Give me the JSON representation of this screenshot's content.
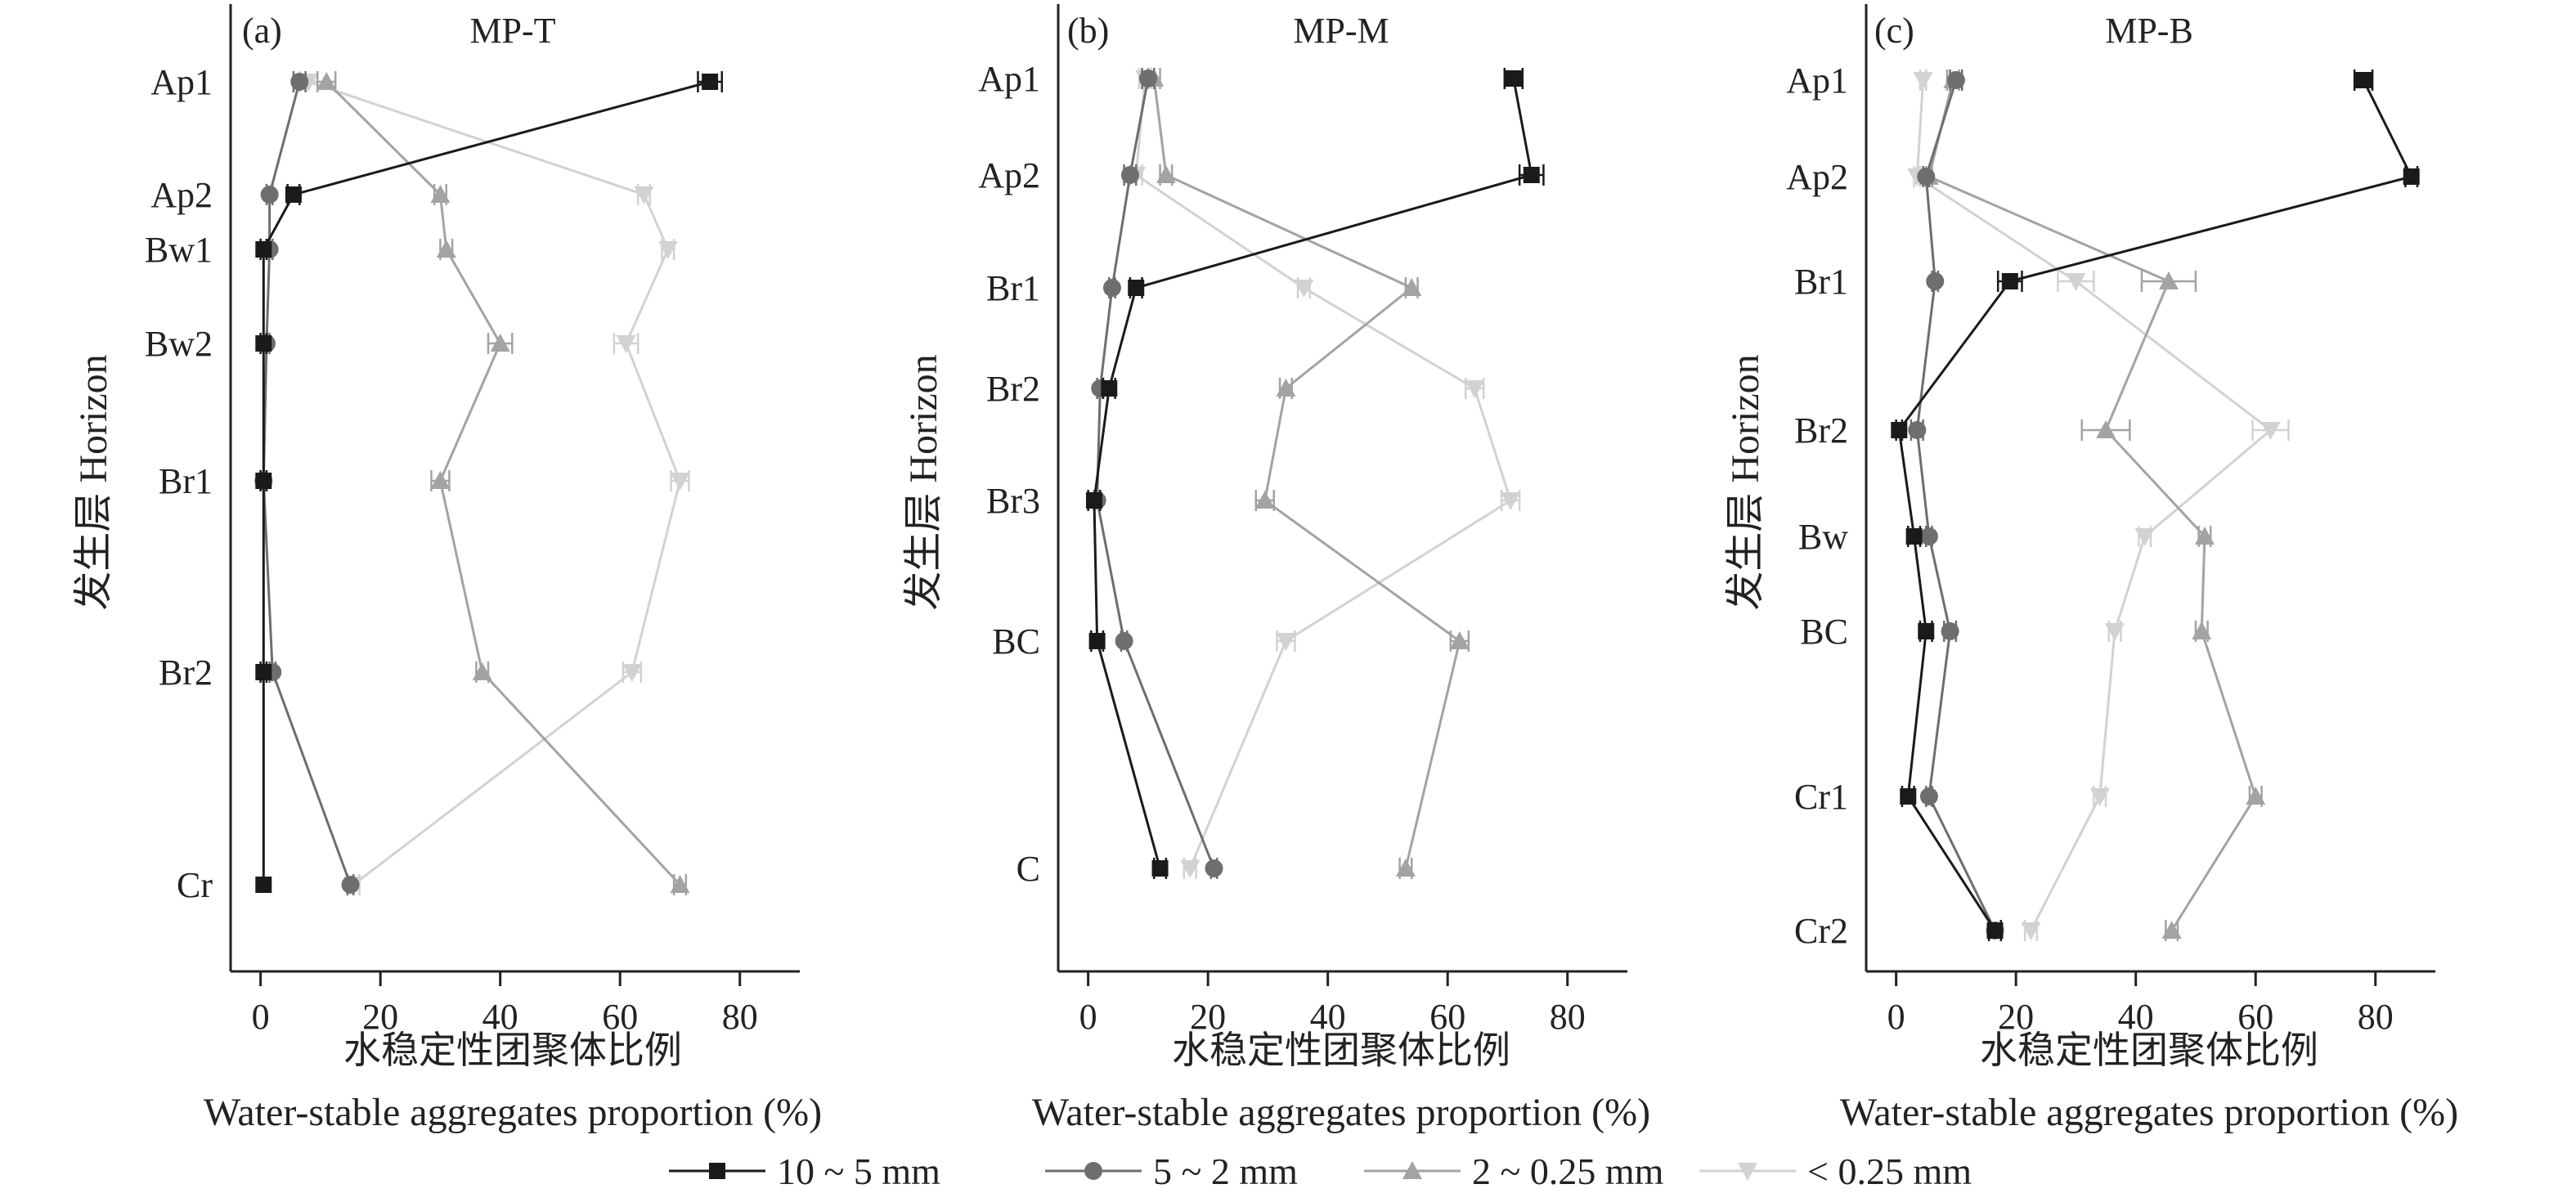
{
  "legend": [
    {
      "name": "10 ~ 5 mm",
      "color": "#1a1a1a",
      "marker": "square"
    },
    {
      "name": "5 ~ 2 mm",
      "color": "#6e6e6e",
      "marker": "circle"
    },
    {
      "name": "2 ~ 0.25 mm",
      "color": "#a3a3a3",
      "marker": "triangle-up"
    },
    {
      "name": "< 0.25 mm",
      "color": "#d2d2d2",
      "marker": "triangle-down"
    }
  ],
  "chart_data": [
    {
      "type": "line",
      "panel": "(a)",
      "title": "MP-T",
      "ylabel": "发生层 Horizon",
      "xlabel_cn": "水稳定性团聚体比例",
      "xlabel_en": "Water-stable aggregates proportion (%)",
      "xlim": [
        -5,
        90
      ],
      "xticks": [
        0,
        20,
        40,
        60,
        80
      ],
      "horizons": [
        "Ap1",
        "Ap2",
        "Bw1",
        "Bw2",
        "Br1",
        "Br2",
        "Cr"
      ],
      "series": [
        {
          "name": "10 ~ 5 mm",
          "values": [
            75,
            5.5,
            0.5,
            0.5,
            0.5,
            0.5,
            0.5
          ],
          "errors": [
            2,
            1,
            0.5,
            0.5,
            0.5,
            0.5,
            0
          ]
        },
        {
          "name": "5 ~ 2 mm",
          "values": [
            6.5,
            1.5,
            1.5,
            1,
            0.5,
            2,
            15
          ],
          "errors": [
            1,
            0.5,
            0.5,
            0.5,
            0.5,
            0.5,
            0.5
          ]
        },
        {
          "name": "2 ~ 0.25 mm",
          "values": [
            11,
            30,
            31,
            40,
            30,
            37,
            70
          ],
          "errors": [
            1.5,
            1,
            1,
            2,
            1.5,
            1,
            1
          ]
        },
        {
          "name": "< 0.25 mm",
          "values": [
            8,
            64,
            68,
            61,
            70,
            62,
            15.5
          ],
          "errors": [
            1.5,
            1,
            1,
            2,
            1.5,
            1.5,
            1
          ]
        }
      ]
    },
    {
      "type": "line",
      "panel": "(b)",
      "title": "MP-M",
      "ylabel": "发生层 Horizon",
      "xlabel_cn": "水稳定性团聚体比例",
      "xlabel_en": "Water-stable aggregates proportion (%)",
      "xlim": [
        -5,
        90
      ],
      "xticks": [
        0,
        20,
        40,
        60,
        80
      ],
      "horizons": [
        "Ap1",
        "Ap2",
        "Br1",
        "Br2",
        "Br3",
        "BC",
        "C"
      ],
      "series": [
        {
          "name": "10 ~ 5 mm",
          "values": [
            71,
            74,
            8,
            3.5,
            1,
            1.5,
            12
          ],
          "errors": [
            1.5,
            2,
            1,
            1,
            1,
            1,
            1
          ]
        },
        {
          "name": "5 ~ 2 mm",
          "values": [
            10,
            7,
            4,
            2,
            1.5,
            6,
            21
          ],
          "errors": [
            1,
            1,
            0.5,
            0.5,
            0.5,
            0.5,
            0.5
          ]
        },
        {
          "name": "2 ~ 0.25 mm",
          "values": [
            11,
            13,
            54,
            33,
            29.5,
            62,
            53
          ],
          "errors": [
            1,
            1,
            1,
            1,
            1.5,
            1.5,
            1
          ]
        },
        {
          "name": "< 0.25 mm",
          "values": [
            9.5,
            8,
            36,
            64.5,
            70.5,
            33,
            17
          ],
          "errors": [
            1,
            1,
            1,
            1.5,
            1.5,
            1.5,
            1
          ]
        }
      ]
    },
    {
      "type": "line",
      "panel": "(c)",
      "title": "MP-B",
      "ylabel": "发生层 Horizon",
      "xlabel_cn": "水稳定性团聚体比例",
      "xlabel_en": "Water-stable aggregates proportion (%)",
      "xlim": [
        -5,
        90
      ],
      "xticks": [
        0,
        20,
        40,
        60,
        80
      ],
      "horizons": [
        "Ap1",
        "Ap2",
        "Br1",
        "Br2",
        "Bw",
        "BC",
        "Cr1",
        "Cr2"
      ],
      "series": [
        {
          "name": "10 ~ 5 mm",
          "values": [
            78,
            86,
            19,
            0.5,
            3,
            5,
            2,
            16.5
          ],
          "errors": [
            1.5,
            1,
            2,
            0.5,
            1,
            1,
            1,
            1
          ]
        },
        {
          "name": "5 ~ 2 mm",
          "values": [
            10,
            5,
            6.5,
            3.5,
            5.5,
            9,
            5.5,
            16.5
          ],
          "errors": [
            1,
            0.5,
            0.5,
            1,
            0.5,
            1,
            0.5,
            1
          ]
        },
        {
          "name": "2 ~ 0.25 mm",
          "values": [
            9.5,
            5.5,
            45.5,
            35,
            51.5,
            51,
            60,
            46
          ],
          "errors": [
            1,
            0.5,
            4.5,
            4,
            1,
            1,
            1,
            1
          ]
        },
        {
          "name": "< 0.25 mm",
          "values": [
            4.5,
            3.5,
            30,
            62.5,
            41.5,
            36.5,
            34,
            22.5
          ],
          "errors": [
            0.5,
            0.5,
            3,
            3,
            1,
            1,
            1,
            1
          ]
        }
      ]
    }
  ]
}
